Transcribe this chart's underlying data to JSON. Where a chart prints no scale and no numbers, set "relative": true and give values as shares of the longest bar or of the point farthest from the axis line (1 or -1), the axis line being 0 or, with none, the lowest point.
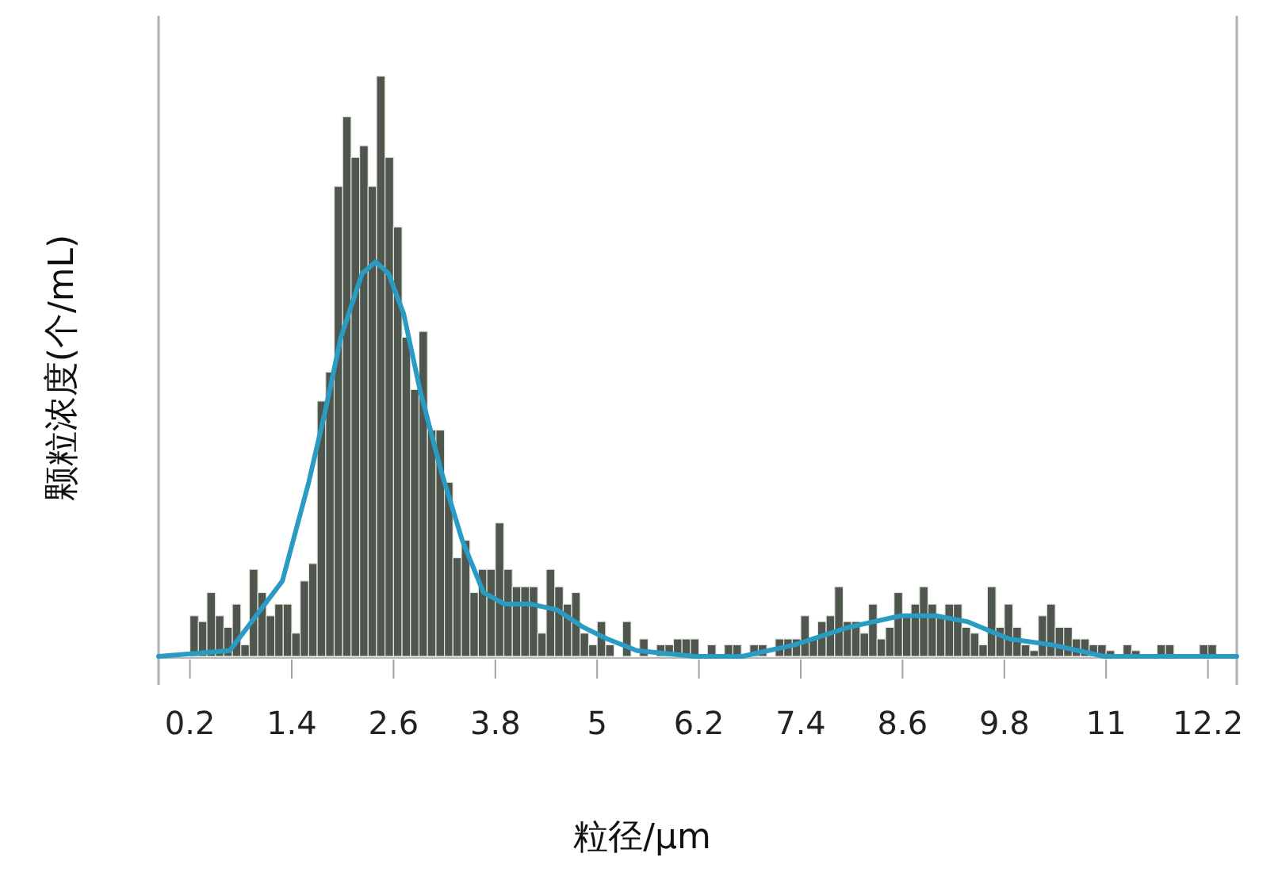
{
  "chart_data": {
    "type": "histogram",
    "relative": true,
    "xlabel": "粒径/μm",
    "ylabel": "颗粒浓度(个/mL)",
    "xlim": [
      -0.17,
      12.54
    ],
    "xticks": [
      0.2,
      1.4,
      2.6,
      3.8,
      5,
      6.2,
      7.4,
      8.6,
      9.8,
      11,
      12.2
    ],
    "series": [
      {
        "color": "#4f564d",
        "bins": [
          0.2,
          0.3,
          0.4,
          0.5,
          0.6,
          0.7,
          0.8,
          0.9,
          1.0,
          1.1,
          1.2,
          1.3,
          1.4,
          1.5,
          1.6,
          1.7,
          1.8,
          1.9,
          2.0,
          2.1,
          2.2,
          2.3,
          2.4,
          2.5,
          2.6,
          2.7,
          2.8,
          2.9,
          3.0,
          3.1,
          3.2,
          3.3,
          3.4,
          3.5,
          3.6,
          3.7,
          3.8,
          3.9,
          4.0,
          4.1,
          4.2,
          4.3,
          4.4,
          4.5,
          4.6,
          4.7,
          4.8,
          4.9,
          5.0,
          5.1,
          5.2,
          5.3,
          5.4,
          5.5,
          5.6,
          5.7,
          5.8,
          5.9,
          6.0,
          6.1,
          6.2,
          6.3,
          6.4,
          6.5,
          6.6,
          6.7,
          6.8,
          6.9,
          7.0,
          7.1,
          7.2,
          7.3,
          7.4,
          7.5,
          7.6,
          7.7,
          7.8,
          7.9,
          8.0,
          8.1,
          8.2,
          8.3,
          8.4,
          8.5,
          8.6,
          8.7,
          8.8,
          8.9,
          9.0,
          9.1,
          9.2,
          9.3,
          9.4,
          9.5,
          9.6,
          9.7,
          9.8,
          9.9,
          10.0,
          10.1,
          10.2,
          10.3,
          10.4,
          10.5,
          10.6,
          10.7,
          10.8,
          10.9,
          11.0,
          11.1,
          11.2,
          11.3,
          11.4,
          11.5,
          11.6,
          11.7,
          11.8,
          11.9,
          12.0,
          12.1,
          12.2,
          12.3
        ],
        "values": [
          0.07,
          0.06,
          0.11,
          0.07,
          0.05,
          0.09,
          0.02,
          0.15,
          0.11,
          0.07,
          0.09,
          0.09,
          0.04,
          0.13,
          0.16,
          0.44,
          0.49,
          0.81,
          0.93,
          0.86,
          0.88,
          0.81,
          1.0,
          0.86,
          0.74,
          0.55,
          0.46,
          0.56,
          0.39,
          0.39,
          0.3,
          0.17,
          0.2,
          0.11,
          0.15,
          0.15,
          0.23,
          0.15,
          0.12,
          0.12,
          0.12,
          0.04,
          0.15,
          0.12,
          0.09,
          0.11,
          0.04,
          0.02,
          0.06,
          0.02,
          0,
          0.06,
          0,
          0.03,
          0,
          0.02,
          0.02,
          0.03,
          0.03,
          0.03,
          0,
          0.02,
          0,
          0.02,
          0.02,
          0,
          0.02,
          0.02,
          0,
          0.03,
          0.03,
          0.03,
          0.07,
          0.03,
          0.06,
          0.07,
          0.12,
          0.06,
          0.06,
          0.04,
          0.09,
          0.03,
          0.05,
          0.11,
          0.07,
          0.09,
          0.12,
          0.09,
          0.07,
          0.09,
          0.09,
          0.05,
          0.04,
          0.02,
          0.12,
          0.05,
          0.09,
          0.05,
          0.02,
          0.01,
          0.07,
          0.09,
          0.05,
          0.05,
          0.03,
          0.03,
          0.02,
          0.02,
          0.01,
          0,
          0.02,
          0.01,
          0,
          0,
          0.02,
          0.02,
          0,
          0,
          0,
          0.02,
          0.02
        ]
      },
      {
        "type": "line",
        "color": "#2a9cc4",
        "x": [
          -0.17,
          0.67,
          0.98,
          1.29,
          1.6,
          1.79,
          1.98,
          2.23,
          2.39,
          2.54,
          2.72,
          2.91,
          3.16,
          3.41,
          3.66,
          3.91,
          4.22,
          4.53,
          4.84,
          5.12,
          5.47,
          6.15,
          6.71,
          7.33,
          7.96,
          8.58,
          8.99,
          9.36,
          9.86,
          10.36,
          10.98,
          11.48,
          12.54
        ],
        "values": [
          0,
          0.01,
          0.07,
          0.13,
          0.3,
          0.42,
          0.55,
          0.66,
          0.68,
          0.66,
          0.59,
          0.46,
          0.32,
          0.2,
          0.11,
          0.09,
          0.09,
          0.08,
          0.05,
          0.03,
          0.01,
          0,
          0,
          0.02,
          0.05,
          0.07,
          0.07,
          0.06,
          0.03,
          0.02,
          0,
          0,
          0
        ]
      }
    ]
  }
}
